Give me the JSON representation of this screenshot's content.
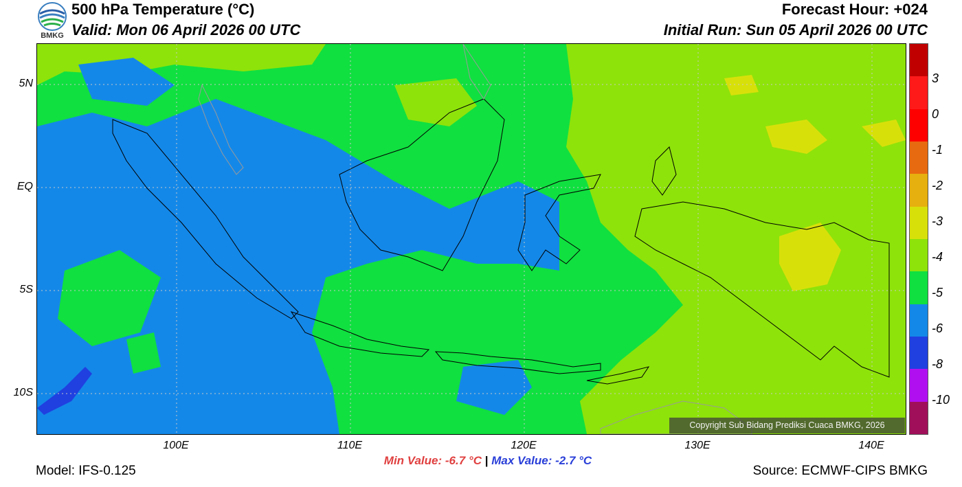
{
  "header": {
    "title": "500 hPa Temperature (°C)",
    "valid": "Valid: Mon 06 April 2026 00 UTC",
    "forecast_hour": "Forecast Hour: +024",
    "initial_run": "Initial Run: Sun 05 April 2026 00 UTC",
    "logo_text": "BMKG"
  },
  "map": {
    "lat_labels": [
      "5N",
      "EQ",
      "5S",
      "10S"
    ],
    "lon_labels": [
      "100E",
      "110E",
      "120E",
      "130E",
      "140E"
    ],
    "copyright": "Copyright Sub Bidang Prediksi Cuaca BMKG, 2026"
  },
  "legend": {
    "labels": [
      "3",
      "0",
      "-1",
      "-2",
      "-3",
      "-4",
      "-5",
      "-6",
      "-8",
      "-10"
    ],
    "colors": [
      "#c00000",
      "#ff1a1a",
      "#ff0000",
      "#e86a10",
      "#e6b00e",
      "#d8e00a",
      "#8ee30a",
      "#10e040",
      "#1488e8",
      "#2040e0",
      "#b010f0",
      "#a0105a"
    ]
  },
  "stats": {
    "min": "Min Value: -6.7 °C",
    "separator": "|",
    "max": "Max Value: -2.7 °C"
  },
  "footer": {
    "model": "Model: IFS-0.125",
    "source": "Source: ECMWF-CIPS BMKG"
  },
  "colors": {
    "band_minus3": "#8ee30a",
    "band_minus4": "#10e040",
    "band_minus5": "#1488e8",
    "band_minus6": "#2040e0",
    "band_minus2": "#d8e00a"
  }
}
